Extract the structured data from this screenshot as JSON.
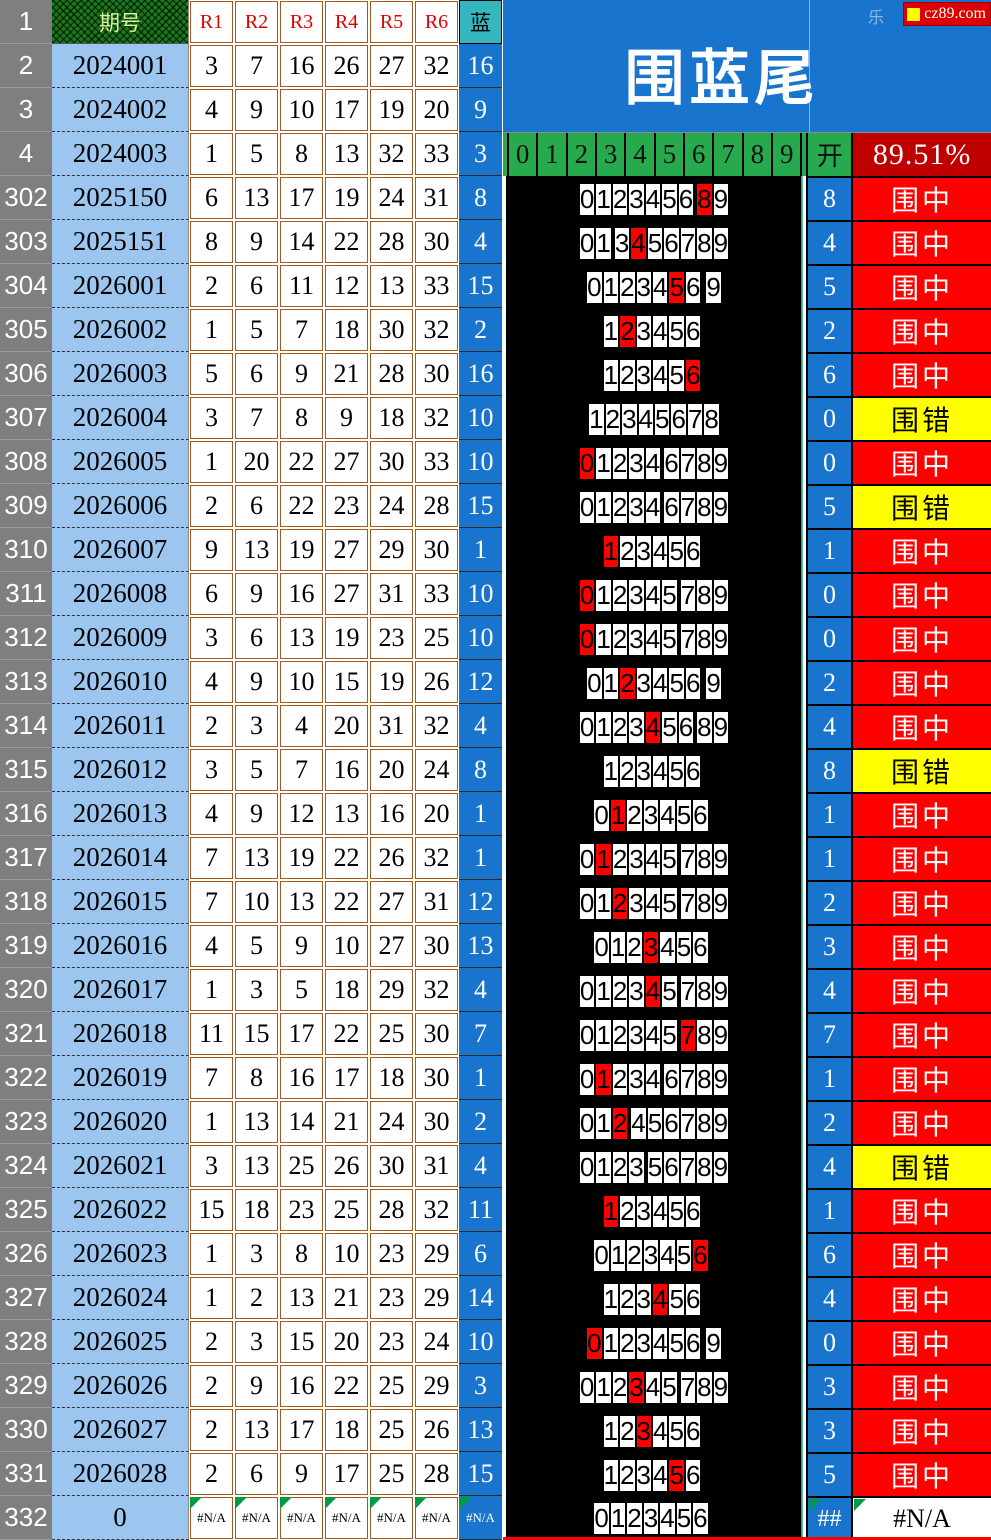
{
  "banner": {
    "title": "围蓝尾",
    "watermark": "乐",
    "logo_text": "cz89.com"
  },
  "header": {
    "corner_row_label": "1",
    "period_label": "期号",
    "r_labels": [
      "R1",
      "R2",
      "R3",
      "R4",
      "R5",
      "R6"
    ],
    "blue_label": "蓝"
  },
  "digit_header": {
    "digits": [
      "0",
      "1",
      "2",
      "3",
      "4",
      "5",
      "6",
      "7",
      "8",
      "9"
    ],
    "open_label": "开",
    "accuracy": "89.51%"
  },
  "result_labels": {
    "hit": "围中",
    "miss": "围错"
  },
  "colors": {
    "banner_blue": "#1874CD",
    "light_blue": "#9CC6EF",
    "teal_header": "#35B5BD",
    "green_header": "#27A94D",
    "hit_red": "#FE0000",
    "miss_yellow": "#FFFF00",
    "accuracy_dark_red": "#C00000",
    "row_header_gray": "#7F7F7F",
    "pattern_green": "#1B7A1B"
  },
  "top_rows": [
    {
      "index": "2",
      "period": "2024001",
      "reds": [
        "3",
        "7",
        "16",
        "26",
        "27",
        "32"
      ],
      "blue": "16"
    },
    {
      "index": "3",
      "period": "2024002",
      "reds": [
        "4",
        "9",
        "10",
        "17",
        "19",
        "20"
      ],
      "blue": "9"
    },
    {
      "index": "4",
      "period": "2024003",
      "reds": [
        "1",
        "5",
        "8",
        "13",
        "32",
        "33"
      ],
      "blue": "3"
    }
  ],
  "rows": [
    {
      "index": "302",
      "period": "2025150",
      "reds": [
        "6",
        "13",
        "17",
        "19",
        "24",
        "31"
      ],
      "blue": "8",
      "tails": [
        0,
        1,
        2,
        3,
        4,
        5,
        6,
        8,
        9
      ],
      "hit": 8,
      "open": "8",
      "result": "围中",
      "type": "hit"
    },
    {
      "index": "303",
      "period": "2025151",
      "reds": [
        "8",
        "9",
        "14",
        "22",
        "28",
        "30"
      ],
      "blue": "4",
      "tails": [
        0,
        1,
        3,
        4,
        5,
        6,
        7,
        8,
        9
      ],
      "hit": 4,
      "open": "4",
      "result": "围中",
      "type": "hit"
    },
    {
      "index": "304",
      "period": "2026001",
      "reds": [
        "2",
        "6",
        "11",
        "12",
        "13",
        "33"
      ],
      "blue": "15",
      "tails": [
        0,
        1,
        2,
        3,
        4,
        5,
        6,
        9
      ],
      "hit": 5,
      "open": "5",
      "result": "围中",
      "type": "hit"
    },
    {
      "index": "305",
      "period": "2026002",
      "reds": [
        "1",
        "5",
        "7",
        "18",
        "30",
        "32"
      ],
      "blue": "2",
      "tails": [
        1,
        2,
        3,
        4,
        5,
        6
      ],
      "hit": 2,
      "open": "2",
      "result": "围中",
      "type": "hit"
    },
    {
      "index": "306",
      "period": "2026003",
      "reds": [
        "5",
        "6",
        "9",
        "21",
        "28",
        "30"
      ],
      "blue": "16",
      "tails": [
        1,
        2,
        3,
        4,
        5,
        6
      ],
      "hit": 6,
      "open": "6",
      "result": "围中",
      "type": "hit"
    },
    {
      "index": "307",
      "period": "2026004",
      "reds": [
        "3",
        "7",
        "8",
        "9",
        "18",
        "32"
      ],
      "blue": "10",
      "tails": [
        1,
        2,
        3,
        4,
        5,
        6,
        7,
        8
      ],
      "hit": null,
      "open": "0",
      "result": "围错",
      "type": "miss"
    },
    {
      "index": "308",
      "period": "2026005",
      "reds": [
        "1",
        "20",
        "22",
        "27",
        "30",
        "33"
      ],
      "blue": "10",
      "tails": [
        0,
        1,
        2,
        3,
        4,
        6,
        7,
        8,
        9
      ],
      "hit": 0,
      "open": "0",
      "result": "围中",
      "type": "hit"
    },
    {
      "index": "309",
      "period": "2026006",
      "reds": [
        "2",
        "6",
        "22",
        "23",
        "24",
        "28"
      ],
      "blue": "15",
      "tails": [
        0,
        1,
        2,
        3,
        4,
        6,
        7,
        8,
        9
      ],
      "hit": null,
      "open": "5",
      "result": "围错",
      "type": "miss"
    },
    {
      "index": "310",
      "period": "2026007",
      "reds": [
        "9",
        "13",
        "19",
        "27",
        "29",
        "30"
      ],
      "blue": "1",
      "tails": [
        1,
        2,
        3,
        4,
        5,
        6
      ],
      "hit": 1,
      "open": "1",
      "result": "围中",
      "type": "hit"
    },
    {
      "index": "311",
      "period": "2026008",
      "reds": [
        "6",
        "9",
        "16",
        "27",
        "31",
        "33"
      ],
      "blue": "10",
      "tails": [
        0,
        1,
        2,
        3,
        4,
        5,
        7,
        8,
        9
      ],
      "hit": 0,
      "open": "0",
      "result": "围中",
      "type": "hit"
    },
    {
      "index": "312",
      "period": "2026009",
      "reds": [
        "3",
        "6",
        "13",
        "19",
        "23",
        "25"
      ],
      "blue": "10",
      "tails": [
        0,
        1,
        2,
        3,
        4,
        5,
        7,
        8,
        9
      ],
      "hit": 0,
      "open": "0",
      "result": "围中",
      "type": "hit"
    },
    {
      "index": "313",
      "period": "2026010",
      "reds": [
        "4",
        "9",
        "10",
        "15",
        "19",
        "26"
      ],
      "blue": "12",
      "tails": [
        0,
        1,
        2,
        3,
        4,
        5,
        6,
        9
      ],
      "hit": 2,
      "open": "2",
      "result": "围中",
      "type": "hit"
    },
    {
      "index": "314",
      "period": "2026011",
      "reds": [
        "2",
        "3",
        "4",
        "20",
        "31",
        "32"
      ],
      "blue": "4",
      "tails": [
        0,
        1,
        2,
        3,
        4,
        5,
        6,
        8,
        9
      ],
      "hit": 4,
      "open": "4",
      "result": "围中",
      "type": "hit"
    },
    {
      "index": "315",
      "period": "2026012",
      "reds": [
        "3",
        "5",
        "7",
        "16",
        "20",
        "24"
      ],
      "blue": "8",
      "tails": [
        1,
        2,
        3,
        4,
        5,
        6
      ],
      "hit": null,
      "open": "8",
      "result": "围错",
      "type": "miss"
    },
    {
      "index": "316",
      "period": "2026013",
      "reds": [
        "4",
        "9",
        "12",
        "13",
        "16",
        "20"
      ],
      "blue": "1",
      "tails": [
        0,
        1,
        2,
        3,
        4,
        5,
        6
      ],
      "hit": 1,
      "open": "1",
      "result": "围中",
      "type": "hit"
    },
    {
      "index": "317",
      "period": "2026014",
      "reds": [
        "7",
        "13",
        "19",
        "22",
        "26",
        "32"
      ],
      "blue": "1",
      "tails": [
        0,
        1,
        2,
        3,
        4,
        5,
        7,
        8,
        9
      ],
      "hit": 1,
      "open": "1",
      "result": "围中",
      "type": "hit"
    },
    {
      "index": "318",
      "period": "2026015",
      "reds": [
        "7",
        "10",
        "13",
        "22",
        "27",
        "31"
      ],
      "blue": "12",
      "tails": [
        0,
        1,
        2,
        3,
        4,
        5,
        7,
        8,
        9
      ],
      "hit": 2,
      "open": "2",
      "result": "围中",
      "type": "hit"
    },
    {
      "index": "319",
      "period": "2026016",
      "reds": [
        "4",
        "5",
        "9",
        "10",
        "27",
        "30"
      ],
      "blue": "13",
      "tails": [
        0,
        1,
        2,
        3,
        4,
        5,
        6
      ],
      "hit": 3,
      "open": "3",
      "result": "围中",
      "type": "hit"
    },
    {
      "index": "320",
      "period": "2026017",
      "reds": [
        "1",
        "3",
        "5",
        "18",
        "29",
        "32"
      ],
      "blue": "4",
      "tails": [
        0,
        1,
        2,
        3,
        4,
        5,
        7,
        8,
        9
      ],
      "hit": 4,
      "open": "4",
      "result": "围中",
      "type": "hit"
    },
    {
      "index": "321",
      "period": "2026018",
      "reds": [
        "11",
        "15",
        "17",
        "22",
        "25",
        "30"
      ],
      "blue": "7",
      "tails": [
        0,
        1,
        2,
        3,
        4,
        5,
        7,
        8,
        9
      ],
      "hit": 7,
      "open": "7",
      "result": "围中",
      "type": "hit"
    },
    {
      "index": "322",
      "period": "2026019",
      "reds": [
        "7",
        "8",
        "16",
        "17",
        "18",
        "30"
      ],
      "blue": "1",
      "tails": [
        0,
        1,
        2,
        3,
        4,
        6,
        7,
        8,
        9
      ],
      "hit": 1,
      "open": "1",
      "result": "围中",
      "type": "hit"
    },
    {
      "index": "323",
      "period": "2026020",
      "reds": [
        "1",
        "13",
        "14",
        "21",
        "24",
        "30"
      ],
      "blue": "2",
      "tails": [
        0,
        1,
        2,
        4,
        5,
        6,
        7,
        8,
        9
      ],
      "hit": 2,
      "open": "2",
      "result": "围中",
      "type": "hit"
    },
    {
      "index": "324",
      "period": "2026021",
      "reds": [
        "3",
        "13",
        "25",
        "26",
        "30",
        "31"
      ],
      "blue": "4",
      "tails": [
        0,
        1,
        2,
        3,
        5,
        6,
        7,
        8,
        9
      ],
      "hit": null,
      "open": "4",
      "result": "围错",
      "type": "miss"
    },
    {
      "index": "325",
      "period": "2026022",
      "reds": [
        "15",
        "18",
        "23",
        "25",
        "28",
        "32"
      ],
      "blue": "11",
      "tails": [
        1,
        2,
        3,
        4,
        5,
        6
      ],
      "hit": 1,
      "open": "1",
      "result": "围中",
      "type": "hit"
    },
    {
      "index": "326",
      "period": "2026023",
      "reds": [
        "1",
        "3",
        "8",
        "10",
        "23",
        "29"
      ],
      "blue": "6",
      "tails": [
        0,
        1,
        2,
        3,
        4,
        5,
        6
      ],
      "hit": 6,
      "open": "6",
      "result": "围中",
      "type": "hit"
    },
    {
      "index": "327",
      "period": "2026024",
      "reds": [
        "1",
        "2",
        "13",
        "21",
        "23",
        "29"
      ],
      "blue": "14",
      "tails": [
        1,
        2,
        3,
        4,
        5,
        6
      ],
      "hit": 4,
      "open": "4",
      "result": "围中",
      "type": "hit"
    },
    {
      "index": "328",
      "period": "2026025",
      "reds": [
        "2",
        "3",
        "15",
        "20",
        "23",
        "24"
      ],
      "blue": "10",
      "tails": [
        0,
        1,
        2,
        3,
        4,
        5,
        6,
        9
      ],
      "hit": 0,
      "open": "0",
      "result": "围中",
      "type": "hit"
    },
    {
      "index": "329",
      "period": "2026026",
      "reds": [
        "2",
        "9",
        "16",
        "22",
        "25",
        "29"
      ],
      "blue": "3",
      "tails": [
        0,
        1,
        2,
        3,
        4,
        5,
        7,
        8,
        9
      ],
      "hit": 3,
      "open": "3",
      "result": "围中",
      "type": "hit"
    },
    {
      "index": "330",
      "period": "2026027",
      "reds": [
        "2",
        "13",
        "17",
        "18",
        "25",
        "26"
      ],
      "blue": "13",
      "tails": [
        1,
        2,
        3,
        4,
        5,
        6
      ],
      "hit": 3,
      "open": "3",
      "result": "围中",
      "type": "hit"
    },
    {
      "index": "331",
      "period": "2026028",
      "reds": [
        "2",
        "6",
        "9",
        "17",
        "25",
        "28"
      ],
      "blue": "15",
      "tails": [
        1,
        2,
        3,
        4,
        5,
        6
      ],
      "hit": 5,
      "open": "5",
      "result": "围中",
      "type": "hit"
    },
    {
      "index": "332",
      "period": "0",
      "reds": [
        "#N/A",
        "#N/A",
        "#N/A",
        "#N/A",
        "#N/A",
        "#N/A"
      ],
      "blue": "#N/A",
      "tails": [
        0,
        1,
        2,
        3,
        4,
        5,
        6
      ],
      "hit": null,
      "open": "##",
      "result": "#N/A",
      "type": "na"
    }
  ]
}
